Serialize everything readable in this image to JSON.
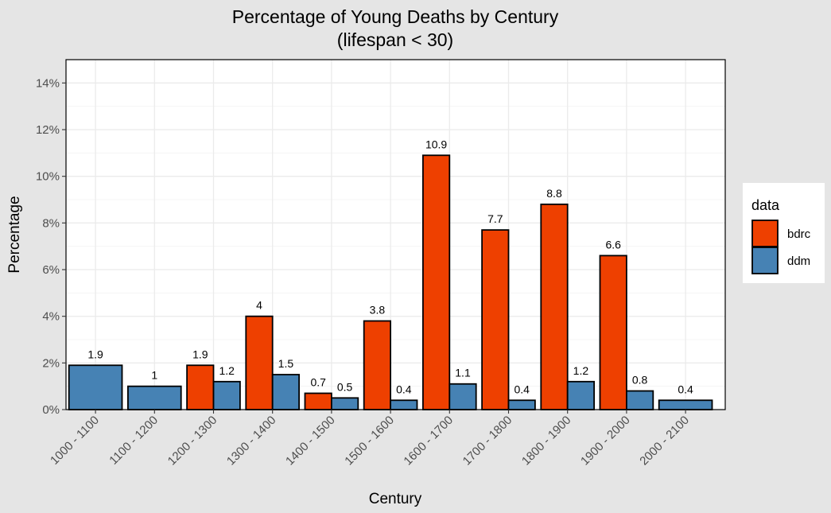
{
  "chart_data": {
    "type": "bar",
    "title": "Percentage of Young Deaths by Century",
    "subtitle": "(lifespan < 30)",
    "xlabel": "Century",
    "ylabel": "Percentage",
    "ylim": [
      0,
      15
    ],
    "yticks": [
      0,
      2,
      4,
      6,
      8,
      10,
      12,
      14
    ],
    "ytick_labels": [
      "0%",
      "2%",
      "4%",
      "6%",
      "8%",
      "10%",
      "12%",
      "14%"
    ],
    "grid": true,
    "legend_title": "data",
    "legend_position": "right",
    "categories": [
      "1000 - 1100",
      "1100 - 1200",
      "1200 - 1300",
      "1300 - 1400",
      "1400 - 1500",
      "1500 - 1600",
      "1600 - 1700",
      "1700 - 1800",
      "1800 - 1900",
      "1900 - 2000",
      "2000 - 2100"
    ],
    "series": [
      {
        "name": "bdrc",
        "color": "#ee4000",
        "values": [
          null,
          null,
          1.9,
          4,
          0.7,
          3.8,
          10.9,
          7.7,
          8.8,
          6.6,
          null
        ],
        "labels": [
          null,
          null,
          "1.9",
          "4",
          "0.7",
          "3.8",
          "10.9",
          "7.7",
          "8.8",
          "6.6",
          null
        ]
      },
      {
        "name": "ddm",
        "color": "#4682b4",
        "values": [
          1.9,
          1,
          1.2,
          1.5,
          0.5,
          0.4,
          1.1,
          0.4,
          1.2,
          0.8,
          0.4
        ],
        "labels": [
          "1.9",
          "1",
          "1.2",
          "1.5",
          "0.5",
          "0.4",
          "1.1",
          "0.4",
          "1.2",
          "0.8",
          "0.4"
        ]
      }
    ]
  }
}
